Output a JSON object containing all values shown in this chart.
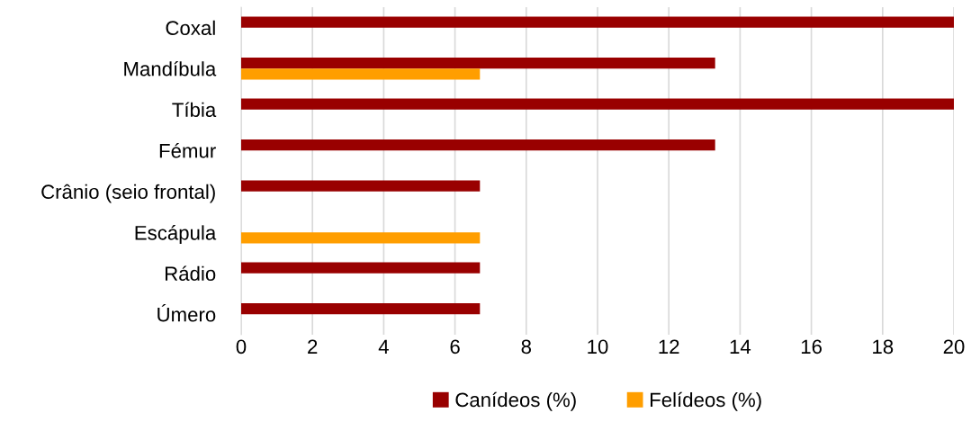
{
  "chart_data": {
    "type": "bar",
    "orientation": "horizontal",
    "categories": [
      "Coxal",
      "Mandíbula",
      "Tíbia",
      "Fémur",
      "Crânio (seio frontal)",
      "Escápula",
      "Rádio",
      "Úmero"
    ],
    "series": [
      {
        "name": "Canídeos (%)",
        "color": "#990000",
        "values": [
          20,
          13.3,
          20,
          13.3,
          6.7,
          null,
          6.7,
          6.7
        ]
      },
      {
        "name": "Felídeos (%)",
        "color": "#ff9e00",
        "values": [
          null,
          6.7,
          null,
          null,
          null,
          6.7,
          null,
          null
        ]
      }
    ],
    "xlim": [
      0,
      20
    ],
    "xticks": [
      0,
      2,
      4,
      6,
      8,
      10,
      12,
      14,
      16,
      18,
      20
    ],
    "grid": "x",
    "legend": "bottom"
  }
}
